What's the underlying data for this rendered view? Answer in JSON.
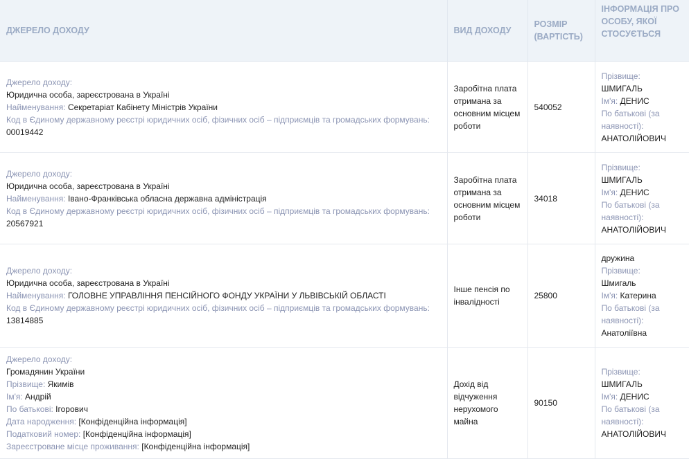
{
  "headers": [
    "ДЖЕРЕЛО ДОХОДУ",
    "ВИД ДОХОДУ",
    "РОЗМІР (ВАРТІСТЬ)",
    "ІНФОРМАЦІЯ ПРО ОСОБУ, ЯКОЇ СТОСУЄТЬСЯ"
  ],
  "rows": [
    {
      "source": [
        {
          "label": "Джерело доходу:",
          "value": ""
        },
        {
          "label": "",
          "value": "Юридична особа, зареєстрована в Україні"
        },
        {
          "label": "Найменування: ",
          "value": "Секретаріат Кабінету Міністрів України"
        },
        {
          "label": "Код в Єдиному державному реєстрі юридичних осіб, фізичних осіб – підприємців та громадських формувань:",
          "value": ""
        },
        {
          "label": "",
          "value": "00019442"
        }
      ],
      "type": "Заробітна плата отримана за основним місцем роботи",
      "amount": "540052",
      "person": [
        {
          "label": "Прізвище:",
          "value": ""
        },
        {
          "label": "",
          "value": "ШМИГАЛЬ"
        },
        {
          "label": "Ім'я: ",
          "value": "ДЕНИС"
        },
        {
          "label": "По батькові (за наявності):",
          "value": ""
        },
        {
          "label": "",
          "value": "АНАТОЛІЙОВИЧ"
        }
      ]
    },
    {
      "source": [
        {
          "label": "Джерело доходу:",
          "value": ""
        },
        {
          "label": "",
          "value": "Юридична особа, зареєстрована в Україні"
        },
        {
          "label": "Найменування: ",
          "value": "Івано-Франківська обласна державна адміністрація"
        },
        {
          "label": "Код в Єдиному державному реєстрі юридичних осіб, фізичних осіб – підприємців та громадських формувань:",
          "value": ""
        },
        {
          "label": "",
          "value": "20567921"
        }
      ],
      "type": "Заробітна плата отримана за основним місцем роботи",
      "amount": "34018",
      "person": [
        {
          "label": "Прізвище:",
          "value": ""
        },
        {
          "label": "",
          "value": "ШМИГАЛЬ"
        },
        {
          "label": "Ім'я: ",
          "value": "ДЕНИС"
        },
        {
          "label": "По батькові (за наявності):",
          "value": ""
        },
        {
          "label": "",
          "value": "АНАТОЛІЙОВИЧ"
        }
      ]
    },
    {
      "source": [
        {
          "label": "Джерело доходу:",
          "value": ""
        },
        {
          "label": "",
          "value": "Юридична особа, зареєстрована в Україні"
        },
        {
          "label": "Найменування: ",
          "value": "ГОЛОВНЕ УПРАВЛІННЯ ПЕНСІЙНОГО ФОНДУ УКРАЇНИ У ЛЬВІВСЬКІЙ ОБЛАСТІ"
        },
        {
          "label": "Код в Єдиному державному реєстрі юридичних осіб, фізичних осіб – підприємців та громадських формувань:",
          "value": ""
        },
        {
          "label": "",
          "value": "13814885"
        }
      ],
      "type": "Інше пенсія по інвалідності",
      "amount": "25800",
      "person": [
        {
          "label": "",
          "value": "дружина"
        },
        {
          "label": "Прізвище:",
          "value": ""
        },
        {
          "label": "",
          "value": "Шмигаль"
        },
        {
          "label": "Ім'я: ",
          "value": "Катерина"
        },
        {
          "label": "По батькові (за наявності):",
          "value": ""
        },
        {
          "label": "",
          "value": "Анатоліївна"
        }
      ]
    },
    {
      "source": [
        {
          "label": "Джерело доходу:",
          "value": ""
        },
        {
          "label": "",
          "value": "Громадянин України"
        },
        {
          "label": "Прізвище: ",
          "value": "Якимів"
        },
        {
          "label": "Ім'я: ",
          "value": "Андрій"
        },
        {
          "label": "По батькові: ",
          "value": "Ігорович"
        },
        {
          "label": "Дата народження: ",
          "value": "[Конфіденційна інформація]"
        },
        {
          "label": "Податковий номер: ",
          "value": "[Конфіденційна інформація]"
        },
        {
          "label": "Зареєстроване місце проживання: ",
          "value": "[Конфіденційна інформація]"
        }
      ],
      "type": "Дохід від відчуження нерухомого майна",
      "amount": "90150",
      "person": [
        {
          "label": "Прізвище:",
          "value": ""
        },
        {
          "label": "",
          "value": "ШМИГАЛЬ"
        },
        {
          "label": "Ім'я: ",
          "value": "ДЕНИС"
        },
        {
          "label": "По батькові (за наявності):",
          "value": ""
        },
        {
          "label": "",
          "value": "АНАТОЛІЙОВИЧ"
        }
      ]
    }
  ]
}
